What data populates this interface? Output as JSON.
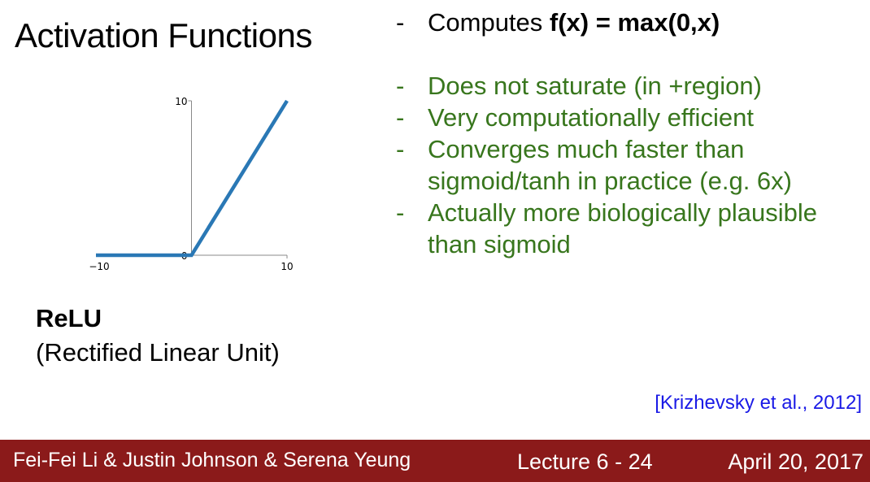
{
  "slide": {
    "title": "Activation Functions",
    "function_name": "ReLU",
    "function_full_name": "(Rectified Linear Unit)",
    "bullets": [
      {
        "prefix": "Computes ",
        "bold": "f(x) = max(0,x)",
        "color": "#000000"
      },
      {
        "text": "Does not saturate (in +region)",
        "color": "#38761d"
      },
      {
        "text": "Very computationally efficient",
        "color": "#38761d"
      },
      {
        "text": "Converges much faster than",
        "text2": "sigmoid/tanh in practice (e.g. 6x)",
        "color": "#38761d"
      },
      {
        "text": "Actually more biologically plausible",
        "text2": "than sigmoid",
        "color": "#38761d"
      }
    ],
    "bullet_marker": "-",
    "citation": "[Krizhevsky et al., 2012]"
  },
  "footer": {
    "authors": "Fei-Fei Li & Justin Johnson & Serena Yeung",
    "lecture": "Lecture 6 - 24",
    "date": "April 20, 2017",
    "background": "#8b1a1a"
  },
  "chart_data": {
    "type": "line",
    "series": [
      {
        "x": [
          -10,
          0,
          10
        ],
        "values": [
          0,
          0,
          10
        ],
        "color": "#2a78b5"
      }
    ],
    "xlim": [
      -10,
      10
    ],
    "ylim": [
      0,
      10
    ],
    "x_ticks": [
      "−10",
      "10"
    ],
    "y_ticks": [
      "0",
      "10"
    ],
    "grid": false
  }
}
